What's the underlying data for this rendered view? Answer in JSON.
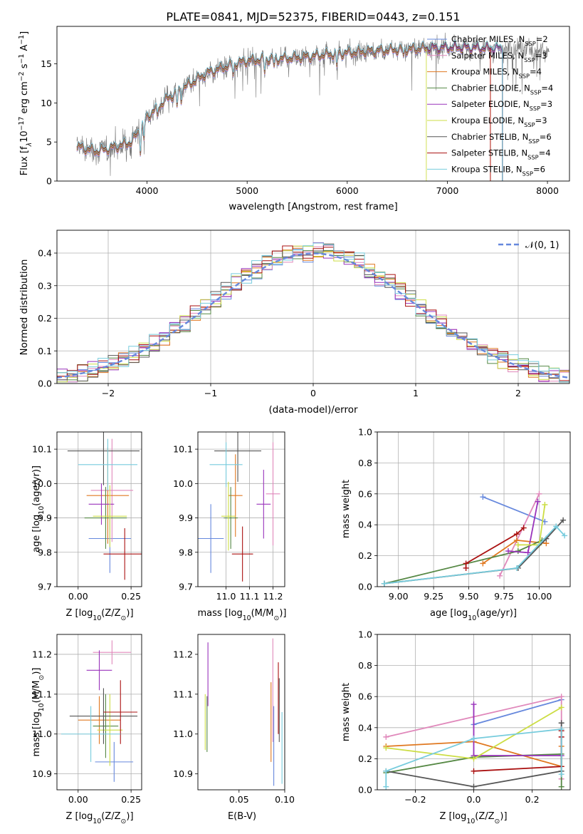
{
  "figure_title": "PLATE=0841, MJD=52375, FIBERID=0443, z=0.151",
  "model_labels": [
    {
      "base": "Chabrier MILES, N",
      "sub": "SSP",
      "suffix": "=2"
    },
    {
      "base": "Salpeter MILES, N",
      "sub": "SSP",
      "suffix": "=3"
    },
    {
      "base": "Kroupa MILES, N",
      "sub": "SSP",
      "suffix": "=4"
    },
    {
      "base": "Chabrier ELODIE, N",
      "sub": "SSP",
      "suffix": "=4"
    },
    {
      "base": "Salpeter ELODIE, N",
      "sub": "SSP",
      "suffix": "=3"
    },
    {
      "base": "Kroupa ELODIE, N",
      "sub": "SSP",
      "suffix": "=3"
    },
    {
      "base": "Chabrier STELIB, N",
      "sub": "SSP",
      "suffix": "=6"
    },
    {
      "base": "Salpeter STELIB, N",
      "sub": "SSP",
      "suffix": "=4"
    },
    {
      "base": "Kroupa STELIB, N",
      "sub": "SSP",
      "suffix": "=6"
    }
  ],
  "colors": {
    "data": "#777777",
    "models": [
      "#6688dd",
      "#e088bb",
      "#e07820",
      "#558844",
      "#9933bb",
      "#ccdd44",
      "#555555",
      "#aa1111",
      "#77ccdd"
    ],
    "gauss": "#6688dd",
    "grid": "#b0b0b0"
  },
  "chart_data": [
    {
      "id": "spectrum",
      "type": "line",
      "xlabel": "wavelength [Angstrom, rest frame]",
      "ylabel": {
        "pre": "Flux [f",
        "lam": "λ",
        "mid": "10",
        "exp1": "−17",
        "mid2": " erg cm",
        "exp2": "−2",
        "mid3": " s",
        "exp3": "−1",
        "mid4": " A",
        "exp4": "−1",
        "post": "]"
      },
      "xlim": [
        3100,
        8220
      ],
      "ylim": [
        0,
        19.8
      ],
      "xticks": [
        4000,
        5000,
        6000,
        7000,
        8000
      ],
      "yticks": [
        0,
        5,
        10,
        15
      ],
      "grid": false,
      "legend": "top-right",
      "continuum_points": [
        [
          3300,
          4.4
        ],
        [
          3500,
          3.8
        ],
        [
          3700,
          4.4
        ],
        [
          3850,
          5.0
        ],
        [
          4000,
          8.2
        ],
        [
          4200,
          10.5
        ],
        [
          4400,
          12.2
        ],
        [
          4600,
          13.8
        ],
        [
          4800,
          14.7
        ],
        [
          5000,
          15.4
        ],
        [
          5200,
          15.6
        ],
        [
          5400,
          15.7
        ],
        [
          5600,
          15.9
        ],
        [
          5800,
          16.2
        ],
        [
          6000,
          16.4
        ],
        [
          6200,
          16.6
        ],
        [
          6500,
          16.8
        ],
        [
          6800,
          17.0
        ],
        [
          7100,
          17.1
        ],
        [
          7400,
          17.0
        ],
        [
          7700,
          16.9
        ],
        [
          8000,
          16.7
        ]
      ],
      "absorption_lines": [
        [
          3934,
          2.8
        ],
        [
          3969,
          2.4
        ],
        [
          4102,
          1.2
        ],
        [
          4300,
          1.8
        ],
        [
          4341,
          1.2
        ],
        [
          4861,
          1.3
        ],
        [
          5175,
          1.6
        ],
        [
          5270,
          1.0
        ],
        [
          5895,
          1.8
        ],
        [
          6563,
          1.0
        ]
      ],
      "model_bounds": [
        [
          3300,
          7550
        ],
        [
          3300,
          7550
        ],
        [
          3300,
          7430
        ],
        [
          3300,
          7550
        ],
        [
          3300,
          7550
        ],
        [
          3300,
          6790
        ],
        [
          3300,
          7550
        ],
        [
          3300,
          7430
        ],
        [
          3300,
          7550
        ]
      ]
    },
    {
      "id": "residuals",
      "type": "histogram",
      "xlabel": "(data-model)/error",
      "ylabel": "Normed distribution",
      "xlim": [
        -2.5,
        2.5
      ],
      "ylim": [
        0,
        0.47
      ],
      "xticks": [
        -2,
        -1,
        0,
        1,
        2
      ],
      "xtick_labels": [
        "−2",
        "−1",
        "0",
        "1",
        "2"
      ],
      "yticks": [
        0.0,
        0.1,
        0.2,
        0.3,
        0.4
      ],
      "ytick_labels": [
        "0.0",
        "0.1",
        "0.2",
        "0.3",
        "0.4"
      ],
      "grid": true,
      "bin_width": 0.1,
      "gaussian": {
        "label": "𝒩(0, 1)",
        "mean": 0,
        "sigma": 1
      },
      "legend": "top-right"
    },
    {
      "id": "z-age",
      "type": "scatter",
      "xlabel": {
        "pre": "Z [log",
        "sub": "10",
        "mid": "(Z/Z",
        "sub2": "⊙",
        "post": ")]"
      },
      "ylabel": {
        "pre": "age  [log",
        "sub": "10",
        "post": "(age/yr)]"
      },
      "xlim": [
        -0.1,
        0.3
      ],
      "ylim": [
        9.7,
        10.15
      ],
      "xticks": [
        0.0,
        0.25
      ],
      "xtick_labels": [
        "0.00",
        "0.25"
      ],
      "yticks": [
        9.7,
        9.8,
        9.9,
        10.0,
        10.1
      ],
      "ytick_labels": [
        "9.7",
        "9.8",
        "9.9",
        "10.0",
        "10.1"
      ],
      "grid": true,
      "points": [
        {
          "x": 0.15,
          "xerr": 0.1,
          "y": 9.84,
          "yerr": 0.1
        },
        {
          "x": 0.16,
          "xerr": 0.1,
          "y": 9.98,
          "yerr": 0.15
        },
        {
          "x": 0.14,
          "xerr": 0.1,
          "y": 9.965,
          "yerr": 0.14
        },
        {
          "x": 0.13,
          "xerr": 0.1,
          "y": 9.9,
          "yerr": 0.09
        },
        {
          "x": 0.11,
          "xerr": 0.06,
          "y": 9.94,
          "yerr": 0.06
        },
        {
          "x": 0.15,
          "xerr": 0.08,
          "y": 9.905,
          "yerr": 0.09
        },
        {
          "x": 0.12,
          "xerr": 0.17,
          "y": 10.095,
          "yerr": 0.1
        },
        {
          "x": 0.22,
          "xerr": 0.1,
          "y": 9.795,
          "yerr": 0.075
        },
        {
          "x": 0.14,
          "xerr": 0.14,
          "y": 10.055,
          "yerr": 0.075
        }
      ]
    },
    {
      "id": "mass-age",
      "type": "scatter",
      "xlabel": {
        "pre": "mass [log",
        "sub": "10",
        "mid": "(M/M",
        "sub2": "⊙",
        "post": ")]"
      },
      "ylabel": "",
      "xlim": [
        10.88,
        11.25
      ],
      "ylim": [
        9.7,
        10.15
      ],
      "xticks": [
        11.0,
        11.1,
        11.2
      ],
      "xtick_labels": [
        "11.0",
        "11.1",
        "11.2"
      ],
      "yticks": [
        9.7,
        9.8,
        9.9,
        10.0,
        10.1
      ],
      "ytick_labels": [
        "9.7",
        "9.8",
        "9.9",
        "10.0",
        "10.1"
      ],
      "grid": true,
      "points": [
        {
          "x": 10.935,
          "xerr": 0.055,
          "y": 9.84,
          "yerr": 0.1
        },
        {
          "x": 11.2,
          "xerr": 0.03,
          "y": 9.97,
          "yerr": 0.15
        },
        {
          "x": 11.04,
          "xerr": 0.03,
          "y": 9.965,
          "yerr": 0.12
        },
        {
          "x": 11.02,
          "xerr": 0.03,
          "y": 9.9,
          "yerr": 0.09
        },
        {
          "x": 11.16,
          "xerr": 0.03,
          "y": 9.94,
          "yerr": 0.1
        },
        {
          "x": 11.01,
          "xerr": 0.03,
          "y": 9.905,
          "yerr": 0.1
        },
        {
          "x": 11.05,
          "xerr": 0.1,
          "y": 10.095,
          "yerr": 0.09
        },
        {
          "x": 11.07,
          "xerr": 0.045,
          "y": 9.795,
          "yerr": 0.08
        },
        {
          "x": 11.0,
          "xerr": 0.07,
          "y": 10.055,
          "yerr": 0.065
        }
      ]
    },
    {
      "id": "age-weight",
      "type": "line",
      "xlabel": {
        "pre": "age  [log",
        "sub": "10",
        "post": "(age/yr)]"
      },
      "ylabel": "mass weight",
      "xlim": [
        8.85,
        10.22
      ],
      "ylim": [
        0.0,
        1.0
      ],
      "xticks": [
        9.0,
        9.25,
        9.5,
        9.75,
        10.0
      ],
      "xtick_labels": [
        "9.00",
        "9.25",
        "9.50",
        "9.75",
        "10.00"
      ],
      "yticks": [
        0.0,
        0.2,
        0.4,
        0.6,
        0.8,
        1.0
      ],
      "ytick_labels": [
        "0.0",
        "0.2",
        "0.4",
        "0.6",
        "0.8",
        "1.0"
      ],
      "grid": true,
      "series": [
        {
          "x": [
            9.6,
            10.04
          ],
          "y": [
            0.58,
            0.42
          ]
        },
        {
          "x": [
            9.72,
            10.0
          ],
          "y": [
            0.07,
            0.6
          ]
        },
        {
          "x": [
            9.6,
            9.84,
            10.05
          ],
          "y": [
            0.15,
            0.3,
            0.28
          ]
        },
        {
          "x": [
            8.9,
            9.85,
            10.02
          ],
          "y": [
            0.02,
            0.23,
            0.3
          ]
        },
        {
          "x": [
            9.78,
            9.92,
            9.99
          ],
          "y": [
            0.23,
            0.22,
            0.55
          ]
        },
        {
          "x": [
            9.85,
            10.0,
            10.04
          ],
          "y": [
            0.27,
            0.27,
            0.53
          ]
        },
        {
          "x": [
            8.9,
            9.85,
            10.05,
            10.17
          ],
          "y": [
            0.02,
            0.12,
            0.31,
            0.43
          ]
        },
        {
          "x": [
            9.48,
            9.48,
            9.84,
            9.89
          ],
          "y": [
            0.12,
            0.15,
            0.34,
            0.38
          ]
        },
        {
          "x": [
            8.9,
            9.84,
            10.12,
            10.18
          ],
          "y": [
            0.02,
            0.12,
            0.39,
            0.33
          ]
        }
      ]
    },
    {
      "id": "z-mass",
      "type": "scatter",
      "xlabel": {
        "pre": "Z [log",
        "sub": "10",
        "mid": "(Z/Z",
        "sub2": "⊙",
        "post": ")]"
      },
      "ylabel": {
        "pre": "mass [log",
        "sub": "10",
        "mid": "(M/M",
        "sub2": "⊙",
        "post": ")]"
      },
      "xlim": [
        -0.1,
        0.3
      ],
      "ylim": [
        10.86,
        11.25
      ],
      "xticks": [
        0.0,
        0.25
      ],
      "xtick_labels": [
        "0.00",
        "0.25"
      ],
      "yticks": [
        10.9,
        11.0,
        11.1,
        11.2
      ],
      "ytick_labels": [
        "10.9",
        "11.0",
        "11.1",
        "11.2"
      ],
      "grid": true,
      "points": [
        {
          "x": 0.17,
          "xerr": 0.09,
          "y": 10.93,
          "yerr": 0.05
        },
        {
          "x": 0.16,
          "xerr": 0.09,
          "y": 11.205,
          "yerr": 0.03
        },
        {
          "x": 0.1,
          "xerr": 0.1,
          "y": 11.035,
          "yerr": 0.06
        },
        {
          "x": 0.13,
          "xerr": 0.06,
          "y": 11.02,
          "yerr": 0.08
        },
        {
          "x": 0.1,
          "xerr": 0.06,
          "y": 11.16,
          "yerr": 0.05
        },
        {
          "x": 0.15,
          "xerr": 0.06,
          "y": 11.01,
          "yerr": 0.09
        },
        {
          "x": 0.12,
          "xerr": 0.16,
          "y": 11.045,
          "yerr": 0.07
        },
        {
          "x": 0.2,
          "xerr": 0.08,
          "y": 11.055,
          "yerr": 0.08
        },
        {
          "x": 0.06,
          "xerr": 0.14,
          "y": 11.0,
          "yerr": 0.07
        }
      ]
    },
    {
      "id": "ebv-mass",
      "type": "scatter",
      "xlabel": "E(B-V)",
      "ylabel": "",
      "xlim": [
        0.005,
        0.1
      ],
      "ylim": [
        10.86,
        11.25
      ],
      "xticks": [
        0.05,
        0.1
      ],
      "xtick_labels": [
        "0.05",
        "0.10"
      ],
      "yticks": [
        10.9,
        11.0,
        11.1,
        11.2
      ],
      "ytick_labels": [
        "10.9",
        "11.0",
        "11.1",
        "11.2"
      ],
      "grid": false,
      "points": [
        {
          "x": 0.088,
          "xerr": 0,
          "y": 10.97,
          "yerr": 0.1
        },
        {
          "x": 0.087,
          "xerr": 0,
          "y": 11.11,
          "yerr": 0.13
        },
        {
          "x": 0.085,
          "xerr": 0,
          "y": 11.03,
          "yerr": 0.1
        },
        {
          "x": 0.015,
          "xerr": 0,
          "y": 11.025,
          "yerr": 0.07
        },
        {
          "x": 0.016,
          "xerr": 0,
          "y": 11.15,
          "yerr": 0.08
        },
        {
          "x": 0.013,
          "xerr": 0,
          "y": 11.03,
          "yerr": 0.07
        },
        {
          "x": 0.094,
          "xerr": 0,
          "y": 11.06,
          "yerr": 0.08
        },
        {
          "x": 0.093,
          "xerr": 0,
          "y": 11.09,
          "yerr": 0.09
        },
        {
          "x": 0.097,
          "xerr": 0,
          "y": 10.965,
          "yerr": 0.09
        }
      ]
    },
    {
      "id": "z-weight",
      "type": "line",
      "xlabel": {
        "pre": "Z [log",
        "sub": "10",
        "mid": "(Z/Z",
        "sub2": "⊙",
        "post": ")]"
      },
      "ylabel": "mass weight",
      "xlim": [
        -0.33,
        0.33
      ],
      "ylim": [
        0.0,
        1.0
      ],
      "xticks": [
        -0.2,
        0.0,
        0.2
      ],
      "xtick_labels": [
        "−0.2",
        "0.0",
        "0.2"
      ],
      "yticks": [
        0.0,
        0.2,
        0.4,
        0.6,
        0.8,
        1.0
      ],
      "ytick_labels": [
        "0.0",
        "0.2",
        "0.4",
        "0.6",
        "0.8",
        "1.0"
      ],
      "grid": true,
      "series": [
        {
          "x": [
            0.0,
            0.3
          ],
          "y": [
            0.42,
            0.58
          ]
        },
        {
          "x": [
            -0.3,
            0.3,
            0.3
          ],
          "y": [
            0.34,
            0.6,
            0.07
          ]
        },
        {
          "x": [
            -0.3,
            0.0,
            0.3,
            0.3
          ],
          "y": [
            0.28,
            0.31,
            0.15,
            0.28
          ]
        },
        {
          "x": [
            -0.3,
            0.0,
            0.3,
            0.3
          ],
          "y": [
            0.11,
            0.21,
            0.23,
            0.02
          ]
        },
        {
          "x": [
            0.0,
            0.0,
            0.3
          ],
          "y": [
            0.55,
            0.22,
            0.22
          ]
        },
        {
          "x": [
            -0.3,
            0.0,
            0.3
          ],
          "y": [
            0.27,
            0.2,
            0.53
          ]
        },
        {
          "x": [
            -0.3,
            0.0,
            0.3,
            0.3
          ],
          "y": [
            0.12,
            0.02,
            0.12,
            0.43
          ]
        },
        {
          "x": [
            0.0,
            0.3,
            0.3,
            0.3
          ],
          "y": [
            0.12,
            0.15,
            0.34,
            0.38
          ]
        },
        {
          "x": [
            -0.3,
            -0.3,
            0.0,
            0.3,
            0.3
          ],
          "y": [
            0.02,
            0.12,
            0.33,
            0.39,
            0.1
          ]
        }
      ]
    }
  ]
}
